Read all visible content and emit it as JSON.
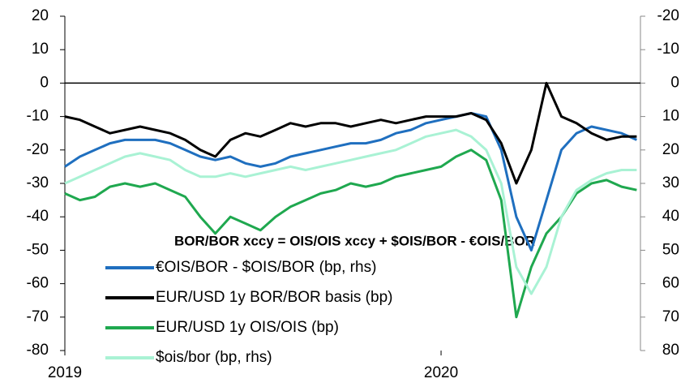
{
  "chart_data": {
    "type": "line",
    "annotation": "BOR/BOR xccy = OIS/OIS xccy + $OIS/BOR - €OIS/BOR",
    "x": [
      2019.0,
      2019.04,
      2019.08,
      2019.12,
      2019.16,
      2019.2,
      2019.24,
      2019.28,
      2019.32,
      2019.36,
      2019.4,
      2019.44,
      2019.48,
      2019.52,
      2019.56,
      2019.6,
      2019.64,
      2019.68,
      2019.72,
      2019.76,
      2019.8,
      2019.84,
      2019.88,
      2019.92,
      2019.96,
      2020.0,
      2020.04,
      2020.08,
      2020.12,
      2020.16,
      2020.2,
      2020.24,
      2020.28,
      2020.32,
      2020.36,
      2020.4,
      2020.44,
      2020.48,
      2020.52
    ],
    "xlim": [
      2019,
      2020.53
    ],
    "xticks": [
      2019,
      2020
    ],
    "ylim": [
      -80,
      20
    ],
    "yticks": [
      -80,
      -70,
      -60,
      -50,
      -40,
      -30,
      -20,
      -10,
      0,
      10,
      20
    ],
    "y2lim": [
      80,
      -20
    ],
    "y2ticks": [
      80,
      70,
      60,
      50,
      40,
      30,
      20,
      10,
      0,
      -10,
      -20
    ],
    "series": [
      {
        "name": "€OIS/BOR - $OIS/BOR (bp, rhs)",
        "color": "#1f6fbf",
        "axis": "y2",
        "values": [
          25,
          22,
          20,
          18,
          17,
          17,
          17,
          18,
          20,
          22,
          23,
          22,
          24,
          25,
          24,
          22,
          21,
          20,
          19,
          18,
          18,
          17,
          15,
          14,
          12,
          11,
          10,
          9,
          10,
          20,
          40,
          50,
          35,
          20,
          15,
          13,
          14,
          15,
          17
        ]
      },
      {
        "name": "EUR/USD 1y BOR/BOR basis (bp)",
        "color": "#000000",
        "values": [
          -10,
          -11,
          -13,
          -15,
          -14,
          -13,
          -14,
          -15,
          -17,
          -20,
          -22,
          -17,
          -15,
          -16,
          -14,
          -12,
          -13,
          -12,
          -12,
          -13,
          -12,
          -11,
          -12,
          -11,
          -10,
          -10,
          -10,
          -9,
          -11,
          -18,
          -30,
          -20,
          0,
          -10,
          -12,
          -15,
          -17,
          -16,
          -16
        ]
      },
      {
        "name": "EUR/USD 1y OIS/OIS (bp)",
        "color": "#1fa84f",
        "values": [
          -33,
          -35,
          -34,
          -31,
          -30,
          -31,
          -30,
          -32,
          -34,
          -40,
          -45,
          -40,
          -42,
          -44,
          -40,
          -37,
          -35,
          -33,
          -32,
          -30,
          -31,
          -30,
          -28,
          -27,
          -26,
          -25,
          -22,
          -20,
          -23,
          -35,
          -70,
          -55,
          -45,
          -40,
          -33,
          -30,
          -29,
          -31,
          -32
        ]
      },
      {
        "name": "$ois/bor (bp, rhs)",
        "color": "#a9f2d4",
        "axis": "y2",
        "values": [
          30,
          28,
          26,
          24,
          22,
          21,
          22,
          23,
          26,
          28,
          28,
          27,
          28,
          27,
          26,
          25,
          26,
          25,
          24,
          23,
          22,
          21,
          20,
          18,
          16,
          15,
          14,
          16,
          20,
          30,
          55,
          63,
          55,
          40,
          32,
          29,
          27,
          26,
          26
        ]
      }
    ]
  }
}
